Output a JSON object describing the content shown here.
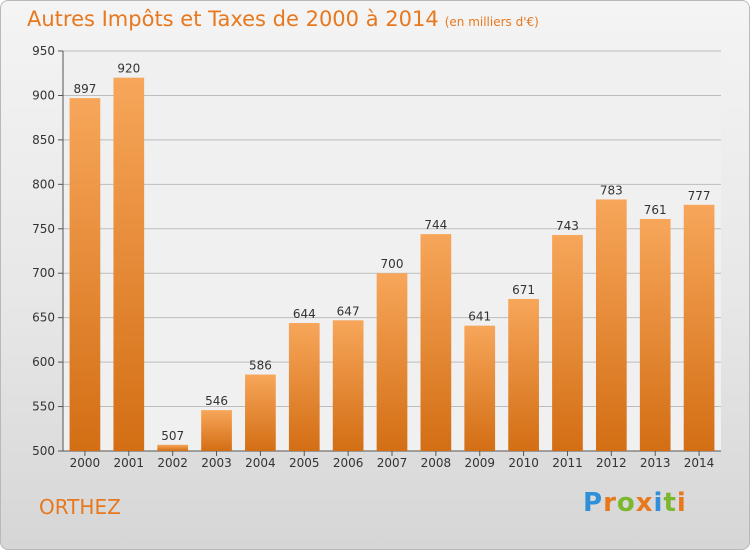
{
  "title": "Autres Impôts et Taxes de 2000 à 2014",
  "subtitle": "(en milliers d'€)",
  "city": "ORTHEZ",
  "logo": "Proxiti",
  "colors": {
    "accent": "#e8781e",
    "bar_top": "#f7a65a",
    "bar_bottom": "#d36e14",
    "grid": "#bdbdbd"
  },
  "chart_data": {
    "type": "bar",
    "title": "Autres Impôts et Taxes de 2000 à 2014",
    "subtitle": "(en milliers d'€)",
    "categories": [
      "2000",
      "2001",
      "2002",
      "2003",
      "2004",
      "2005",
      "2006",
      "2007",
      "2008",
      "2009",
      "2010",
      "2011",
      "2012",
      "2013",
      "2014"
    ],
    "values": [
      897,
      920,
      507,
      546,
      586,
      644,
      647,
      700,
      744,
      641,
      671,
      743,
      783,
      761,
      777
    ],
    "ylim": [
      500,
      950
    ],
    "yticks": [
      500,
      550,
      600,
      650,
      700,
      750,
      800,
      850,
      900,
      950
    ],
    "grid": true,
    "data_labels": true
  }
}
